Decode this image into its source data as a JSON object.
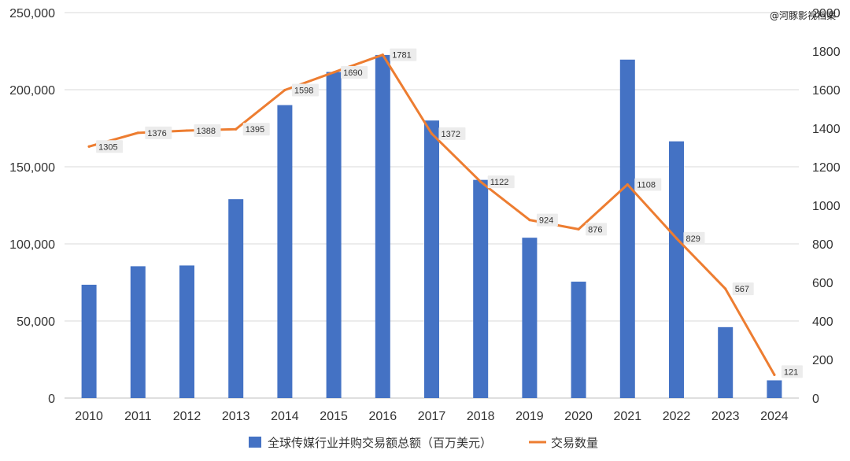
{
  "watermark": "@河豚影视档案",
  "chart_data": {
    "type": "bar",
    "categories": [
      "2010",
      "2011",
      "2012",
      "2013",
      "2014",
      "2015",
      "2016",
      "2017",
      "2018",
      "2019",
      "2020",
      "2021",
      "2022",
      "2023",
      "2024"
    ],
    "series": [
      {
        "name": "全球传媒行业并购交易额总额（百万美元）",
        "type": "bar",
        "axis": "left",
        "color": "#4472C4",
        "values": [
          73500,
          85500,
          86000,
          129000,
          190000,
          211500,
          222500,
          180000,
          141500,
          104000,
          75500,
          219500,
          166500,
          46000,
          11500
        ]
      },
      {
        "name": "交易数量",
        "type": "line",
        "axis": "right",
        "color": "#ED7D31",
        "values": [
          1305,
          1376,
          1388,
          1395,
          1598,
          1690,
          1781,
          1372,
          1122,
          924,
          876,
          1108,
          829,
          567,
          121
        ]
      }
    ],
    "y_left": {
      "lim": [
        0,
        250000
      ],
      "ticks": [
        "0",
        "50,000",
        "100,000",
        "150,000",
        "200,000",
        "250,000"
      ]
    },
    "y_right": {
      "lim": [
        0,
        2000
      ],
      "ticks": [
        "0",
        "200",
        "400",
        "600",
        "800",
        "1000",
        "1200",
        "1400",
        "1600",
        "1800",
        "2000"
      ]
    },
    "grid": true,
    "legend": "bottom-center"
  }
}
